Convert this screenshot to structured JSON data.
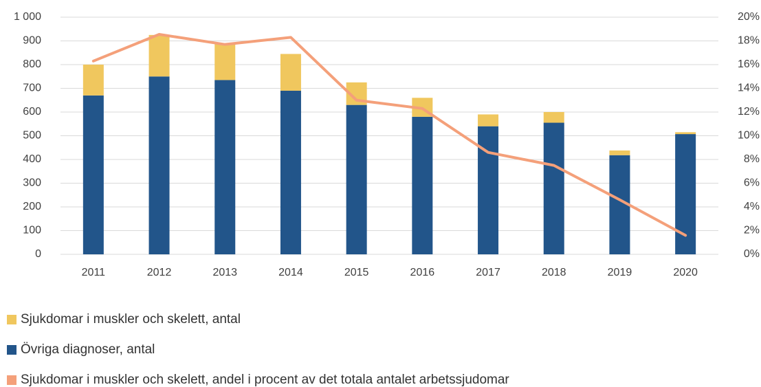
{
  "chart_data": {
    "type": "bar",
    "categories": [
      "2011",
      "2012",
      "2013",
      "2014",
      "2015",
      "2016",
      "2017",
      "2018",
      "2019",
      "2020"
    ],
    "series": [
      {
        "name": "Sjukdomar i muskler och skelett, antal",
        "color": "#f0c75e",
        "type": "bar",
        "values": [
          130,
          175,
          155,
          155,
          95,
          80,
          50,
          45,
          20,
          8
        ]
      },
      {
        "name": "Övriga diagnoser, antal",
        "color": "#22558a",
        "type": "bar",
        "values": [
          670,
          750,
          735,
          690,
          630,
          580,
          540,
          555,
          418,
          507
        ]
      },
      {
        "name": "Sjukdomar i muskler och skelett, andel i procent av det totala antalet arbetssjudomar",
        "color": "#f4a07a",
        "type": "line",
        "axis": "y2",
        "values": [
          16.3,
          18.55,
          17.7,
          18.3,
          13.0,
          12.3,
          8.6,
          7.5,
          4.6,
          1.6
        ]
      }
    ],
    "ylim": [
      0,
      1000
    ],
    "yticks": [
      0,
      100,
      200,
      300,
      400,
      500,
      600,
      700,
      800,
      900,
      {
        "value": 1000,
        "label": "1 000"
      }
    ],
    "y2lim": [
      0,
      20
    ],
    "y2ticks": [
      {
        "value": 0,
        "label": "0%"
      },
      {
        "value": 2,
        "label": "2%"
      },
      {
        "value": 4,
        "label": "4%"
      },
      {
        "value": 6,
        "label": "6%"
      },
      {
        "value": 8,
        "label": "8%"
      },
      {
        "value": 10,
        "label": "10%"
      },
      {
        "value": 12,
        "label": "12%"
      },
      {
        "value": 14,
        "label": "14%"
      },
      {
        "value": 16,
        "label": "16%"
      },
      {
        "value": 18,
        "label": "18%"
      },
      {
        "value": 20,
        "label": "20%"
      }
    ],
    "grid": true
  }
}
